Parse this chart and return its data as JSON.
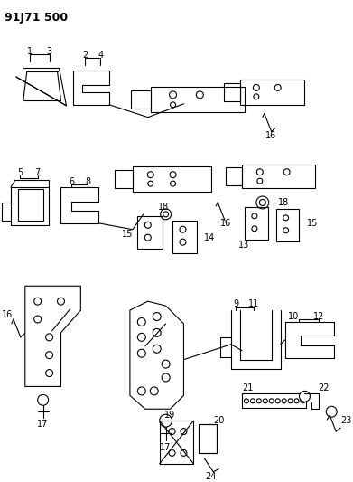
{
  "title": "91J71 500",
  "bg_color": "#ffffff",
  "fig_width": 3.91,
  "fig_height": 5.33,
  "dpi": 100
}
